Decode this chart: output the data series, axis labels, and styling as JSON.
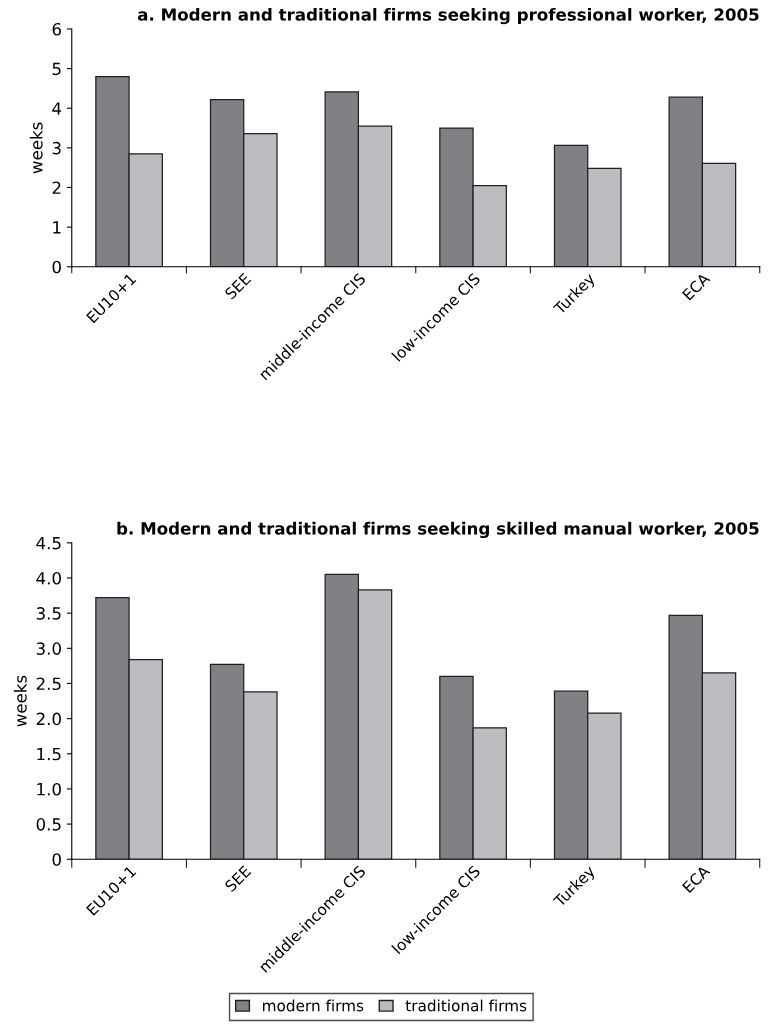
{
  "chart_data": [
    {
      "type": "bar",
      "title": "a. Modern and traditional firms seeking professional worker, 2005",
      "ylabel": "weeks",
      "categories": [
        "EU10+1",
        "SEE",
        "middle-income CIS",
        "low-income CIS",
        "Turkey",
        "ECA"
      ],
      "series": [
        {
          "color": "#808184",
          "values": [
            4.8,
            4.22,
            4.41,
            3.5,
            3.06,
            4.28
          ]
        },
        {
          "color": "#bcbdc1",
          "values": [
            2.85,
            3.36,
            3.55,
            2.05,
            2.48,
            2.61
          ]
        }
      ],
      "ylim": [
        0,
        6
      ],
      "yticks": [
        0,
        1,
        2,
        3,
        4,
        5,
        6
      ],
      "grid": false
    },
    {
      "type": "bar",
      "title": "b. Modern and traditional firms seeking skilled manual worker, 2005",
      "ylabel": "weeks",
      "categories": [
        "EU10+1",
        "SEE",
        "middle-income CIS",
        "low-income CIS",
        "Turkey",
        "ECA"
      ],
      "series": [
        {
          "name": "modern firms",
          "color": "#808184",
          "values": [
            3.72,
            2.77,
            4.05,
            2.6,
            2.39,
            3.47
          ]
        },
        {
          "name": "traditional firms",
          "color": "#bcbdc1",
          "values": [
            2.84,
            2.38,
            3.83,
            1.87,
            2.08,
            2.65
          ]
        }
      ],
      "ylim": [
        0,
        4.5
      ],
      "yticks": [
        0,
        {
          "value": 0.5,
          "label": "0.5"
        },
        {
          "value": 1.0,
          "label": "1.0"
        },
        {
          "value": 1.5,
          "label": "1.5"
        },
        {
          "value": 2.0,
          "label": "2.0"
        },
        {
          "value": 2.5,
          "label": "2.5"
        },
        {
          "value": 3.0,
          "label": "3.0"
        },
        {
          "value": 3.5,
          "label": "3.5"
        },
        {
          "value": 4.0,
          "label": "4.0"
        },
        {
          "value": 4.5,
          "label": "4.5"
        }
      ],
      "grid": false,
      "legend": "bottom"
    }
  ]
}
